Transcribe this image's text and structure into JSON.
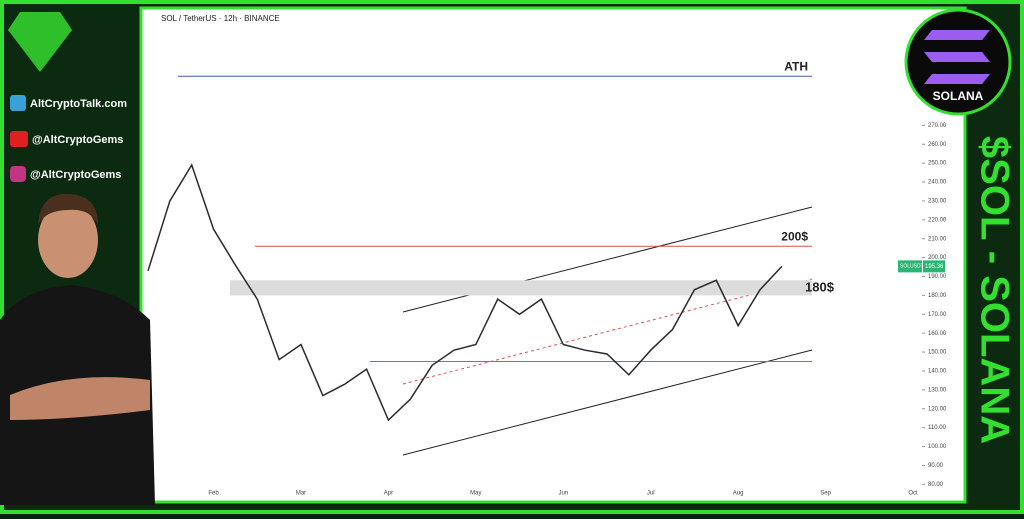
{
  "chart_data": {
    "type": "line",
    "title": "SOL / TetherUS · 12h · BINANCE",
    "categories": [
      null,
      null,
      null,
      "Feb",
      null,
      null,
      null,
      "Mar",
      null,
      null,
      null,
      "Apr",
      null,
      null,
      null,
      "May",
      null,
      null,
      null,
      "Jun",
      null,
      null,
      null,
      "Jul",
      null,
      null,
      null,
      "Aug",
      null,
      null,
      null,
      "Sep",
      null,
      null,
      null,
      "Oct"
    ],
    "series": [
      {
        "name": "SOLUSDT",
        "color": "#2b2b2b",
        "values": [
          193,
          230,
          249,
          215,
          196,
          178,
          146,
          154,
          127,
          133,
          141,
          114,
          125,
          143,
          151,
          154,
          178,
          170,
          178,
          154,
          151,
          149,
          138,
          151,
          162,
          183,
          188,
          164,
          183,
          195.36,
          null,
          null,
          null,
          null,
          null,
          null
        ]
      }
    ],
    "last_price_label": "195.36",
    "ylim": [
      77,
      330
    ],
    "yticks": [
      {
        "value": 80,
        "label": "80.00"
      },
      {
        "value": 90,
        "label": "90.00"
      },
      {
        "value": 100,
        "label": "100.00"
      },
      {
        "value": 110,
        "label": "110.00"
      },
      {
        "value": 120,
        "label": "120.00"
      },
      {
        "value": 130,
        "label": "130.00"
      },
      {
        "value": 140,
        "label": "140.00"
      },
      {
        "value": 150,
        "label": "150.00"
      },
      {
        "value": 160,
        "label": "160.00"
      },
      {
        "value": 170,
        "label": "170.00"
      },
      {
        "value": 180,
        "label": "180.00"
      },
      {
        "value": 190,
        "label": "190.00"
      },
      {
        "value": 200,
        "label": "200.00"
      },
      {
        "value": 210,
        "label": "210.00"
      },
      {
        "value": 220,
        "label": "220.00"
      },
      {
        "value": 230,
        "label": "230.00"
      },
      {
        "value": 240,
        "label": "240.00"
      },
      {
        "value": 250,
        "label": "250.00"
      },
      {
        "value": 260,
        "label": "260.00"
      },
      {
        "value": 270,
        "label": "270.00"
      }
    ],
    "levels": [
      {
        "label": "ATH",
        "value": 296,
        "color": "#3d5fa8"
      },
      {
        "label": "200$",
        "value": 206,
        "color": "#d9534f"
      },
      {
        "value": 145,
        "color": "#d9534f"
      }
    ],
    "zones": [
      {
        "label": "180$",
        "range": [
          180,
          188
        ],
        "color": "#dcdcdc"
      }
    ]
  },
  "sidebar": {
    "website": "AltCryptoTalk.com",
    "youtube": "@AltCryptoGems",
    "instagram": "@AltCryptoGems"
  },
  "banner": {
    "logo": "SOLANA",
    "headline": "$SOL - SOLANA"
  }
}
